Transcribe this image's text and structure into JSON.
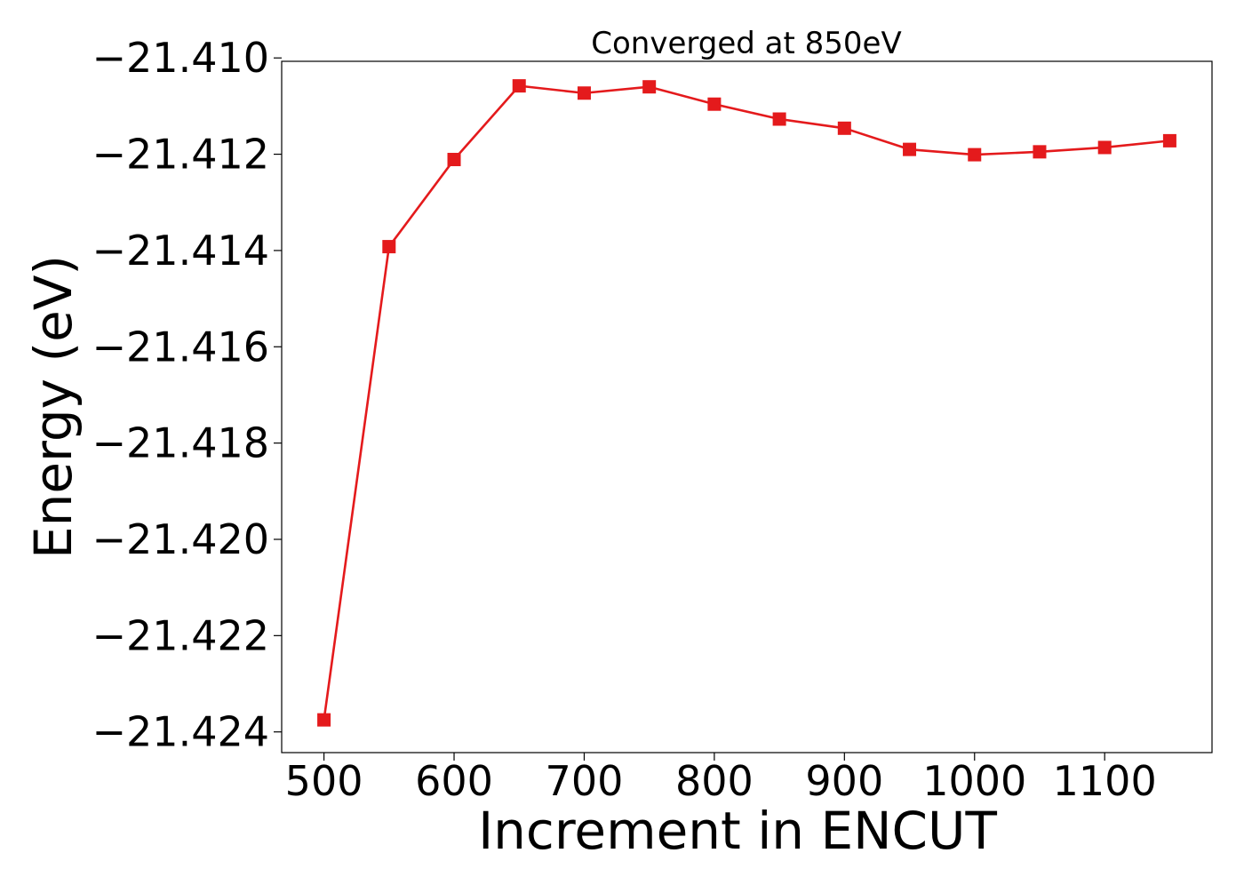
{
  "chart_data": {
    "type": "line",
    "title": "Converged at 850eV",
    "xlabel": "Increment in ENCUT",
    "ylabel": "Energy (eV)",
    "x": [
      500,
      550,
      600,
      650,
      700,
      750,
      800,
      850,
      900,
      950,
      1000,
      1050,
      1100,
      1150
    ],
    "series": [
      {
        "values": [
          -21.42375,
          -21.41392,
          -21.41211,
          -21.41058,
          -21.41073,
          -21.4106,
          -21.41096,
          -21.41127,
          -21.41146,
          -21.4119,
          -21.41201,
          -21.41195,
          -21.41186,
          -21.41172
        ],
        "color": "#e41a1c",
        "marker": "square"
      }
    ],
    "xlim": [
      467.5,
      1182.5
    ],
    "ylim": [
      -21.42443,
      -21.41007
    ],
    "xticks": [
      500,
      600,
      700,
      800,
      900,
      1000,
      1100
    ],
    "xtick_labels": [
      "500",
      "600",
      "700",
      "800",
      "900",
      "1000",
      "1100"
    ],
    "yticks": [
      -21.41,
      -21.412,
      -21.414,
      -21.416,
      -21.418,
      -21.42,
      -21.422,
      -21.424
    ],
    "ytick_labels": [
      "−21.410",
      "−21.412",
      "−21.414",
      "−21.416",
      "−21.418",
      "−21.420",
      "−21.422",
      "−21.424"
    ],
    "grid": false,
    "legend": "none"
  }
}
